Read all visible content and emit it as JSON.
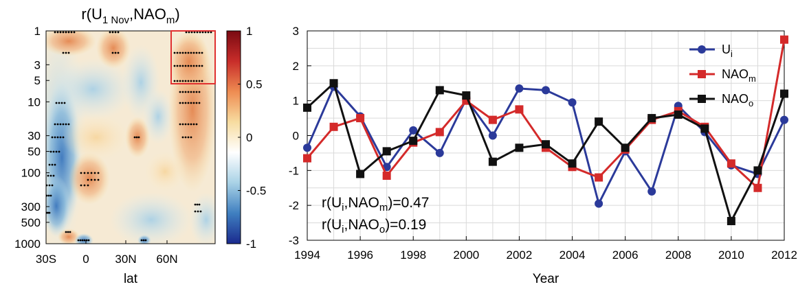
{
  "chart_data": [
    {
      "type": "heatmap",
      "title": "r(U1 Nov,NAOm)",
      "title_parts": {
        "base": "r(U",
        "sub1": "1 Nov",
        "comma": ",NAO",
        "sub2": "m",
        "close": ")"
      },
      "xlabel": "lat",
      "x_tick_labels": [
        "30S",
        "0",
        "30N",
        "60N"
      ],
      "y_tick_labels": [
        "1",
        "3",
        "5",
        "10",
        "30",
        "50",
        "100",
        "300",
        "500",
        "1000"
      ],
      "y_scale": "log",
      "colorbar": {
        "range": [
          -1,
          1
        ],
        "tick_labels": [
          "1",
          "0.5",
          "0",
          "-0.5",
          "-1"
        ],
        "colors": [
          "#1a2a8e",
          "#3f7fc0",
          "#a9d2e6",
          "#ffffff",
          "#f7dca0",
          "#ee8c52",
          "#c82d2a",
          "#7a0a12"
        ]
      },
      "highlight_box_color": "#e03030"
    },
    {
      "type": "line",
      "x": [
        1994,
        1995,
        1996,
        1997,
        1998,
        1999,
        2000,
        2001,
        2002,
        2003,
        2004,
        2005,
        2006,
        2007,
        2008,
        2009,
        2010,
        2011,
        2012
      ],
      "xlabel": "Year",
      "ylabel": "",
      "ylim": [
        -3,
        3
      ],
      "xlim": [
        1994,
        2012
      ],
      "x_tick_labels": [
        "1994",
        "1996",
        "1998",
        "2000",
        "2002",
        "2004",
        "2006",
        "2008",
        "2010",
        "2012"
      ],
      "y_tick_labels": [
        "3",
        "2",
        "1",
        "0",
        "-1",
        "-2",
        "-3"
      ],
      "grid": true,
      "legend_position": "top-right",
      "series": [
        {
          "name": "Ui",
          "name_base": "U",
          "name_sub": "i",
          "color": "#2b3a9a",
          "marker": "circle",
          "values": [
            -0.35,
            1.4,
            0.55,
            -0.9,
            0.15,
            -0.5,
            1.05,
            0.0,
            1.35,
            1.3,
            0.95,
            -1.95,
            -0.45,
            -1.6,
            0.85,
            0.1,
            -0.85,
            -1.1,
            0.45
          ]
        },
        {
          "name": "NAOm",
          "name_base": "NAO",
          "name_sub": "m",
          "color": "#d42a2a",
          "marker": "square",
          "values": [
            -0.65,
            0.25,
            0.5,
            -1.15,
            -0.2,
            0.1,
            1.0,
            0.45,
            0.75,
            -0.35,
            -0.9,
            -1.2,
            -0.4,
            0.45,
            0.7,
            0.25,
            -0.8,
            -1.5,
            2.75
          ]
        },
        {
          "name": "NAOo",
          "name_base": "NAO",
          "name_sub": "o",
          "color": "#111111",
          "marker": "square",
          "values": [
            0.8,
            1.5,
            -1.1,
            -0.45,
            -0.15,
            1.3,
            1.15,
            -0.75,
            -0.35,
            -0.25,
            -0.8,
            0.4,
            -0.35,
            0.5,
            0.6,
            0.2,
            -2.45,
            -1.0,
            1.2
          ]
        }
      ],
      "annotations": [
        {
          "text": "r(Ui,NAOm)=0.47",
          "parts": {
            "a": "r(U",
            "s1": "i",
            "b": ",NAO",
            "s2": "m",
            "c": ")=0.47"
          }
        },
        {
          "text": "r(Ui,NAOo)=0.19",
          "parts": {
            "a": "r(U",
            "s1": "i",
            "b": ",NAO",
            "s2": "o",
            "c": ")=0.19"
          }
        }
      ]
    }
  ]
}
